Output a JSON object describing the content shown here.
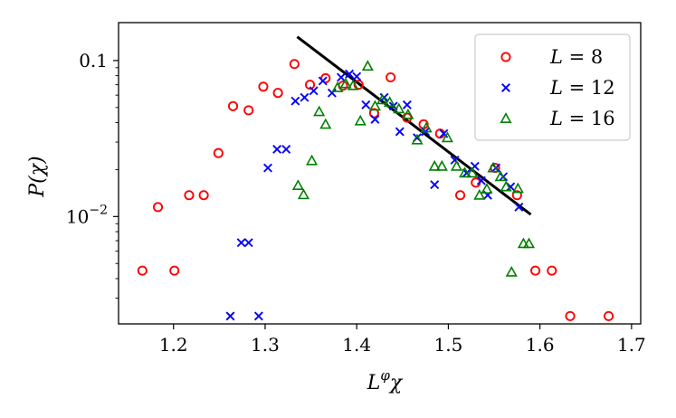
{
  "chart_data": {
    "type": "scatter",
    "xlabel": "L^φ χ",
    "ylabel": "P(χ)",
    "xlim": [
      1.14,
      1.71
    ],
    "ylim": [
      0.00205,
      0.175
    ],
    "yscale": "log",
    "xticks": [
      1.2,
      1.3,
      1.4,
      1.5,
      1.6,
      1.7
    ],
    "xtick_labels": [
      "1.2",
      "1.3",
      "1.4",
      "1.5",
      "1.6",
      "1.7"
    ],
    "yticks": [
      0.1,
      0.01
    ],
    "ytick_labels": [
      "0.1",
      "10^{-2}"
    ],
    "legend_position": "top-right",
    "grid": false,
    "series": [
      {
        "name": "L = 8",
        "marker": "circle",
        "color": "#ff0000",
        "x": [
          1.166,
          1.183,
          1.201,
          1.217,
          1.233,
          1.249,
          1.265,
          1.282,
          1.298,
          1.314,
          1.332,
          1.349,
          1.366,
          1.385,
          1.402,
          1.419,
          1.437,
          1.455,
          1.473,
          1.491,
          1.513,
          1.53,
          1.551,
          1.575,
          1.595,
          1.613,
          1.633,
          1.675
        ],
        "y": [
          0.0045,
          0.0115,
          0.0045,
          0.0137,
          0.0137,
          0.0255,
          0.051,
          0.048,
          0.068,
          0.062,
          0.095,
          0.07,
          0.077,
          0.069,
          0.07,
          0.046,
          0.078,
          0.043,
          0.039,
          0.034,
          0.0137,
          0.0165,
          0.0205,
          0.0137,
          0.0045,
          0.0045,
          0.0023,
          0.0023
        ]
      },
      {
        "name": "L = 12",
        "marker": "x",
        "color": "#0000ff",
        "x": [
          1.262,
          1.274,
          1.282,
          1.293,
          1.303,
          1.313,
          1.323,
          1.333,
          1.343,
          1.353,
          1.363,
          1.373,
          1.383,
          1.392,
          1.4,
          1.41,
          1.42,
          1.43,
          1.44,
          1.447,
          1.455,
          1.466,
          1.475,
          1.485,
          1.495,
          1.507,
          1.52,
          1.529,
          1.536,
          1.543,
          1.552,
          1.56,
          1.568,
          1.577
        ],
        "y": [
          0.0023,
          0.0068,
          0.0068,
          0.0023,
          0.0205,
          0.027,
          0.027,
          0.055,
          0.058,
          0.064,
          0.074,
          0.062,
          0.078,
          0.082,
          0.079,
          0.052,
          0.042,
          0.058,
          0.051,
          0.035,
          0.052,
          0.032,
          0.035,
          0.016,
          0.034,
          0.023,
          0.019,
          0.021,
          0.017,
          0.0137,
          0.0205,
          0.018,
          0.0155,
          0.0115
        ]
      },
      {
        "name": "L = 16",
        "marker": "triangle",
        "color": "#008000",
        "x": [
          1.336,
          1.342,
          1.351,
          1.359,
          1.366,
          1.379,
          1.388,
          1.396,
          1.404,
          1.412,
          1.42,
          1.428,
          1.436,
          1.446,
          1.456,
          1.466,
          1.476,
          1.485,
          1.493,
          1.499,
          1.509,
          1.518,
          1.526,
          1.534,
          1.542,
          1.549,
          1.557,
          1.563,
          1.569,
          1.576,
          1.582,
          1.588
        ],
        "y": [
          0.0158,
          0.0138,
          0.0228,
          0.047,
          0.039,
          0.067,
          0.071,
          0.069,
          0.041,
          0.092,
          0.051,
          0.056,
          0.054,
          0.049,
          0.045,
          0.031,
          0.037,
          0.021,
          0.021,
          0.032,
          0.021,
          0.019,
          0.019,
          0.0137,
          0.015,
          0.0205,
          0.018,
          0.0155,
          0.0044,
          0.0151,
          0.0067,
          0.0067
        ]
      }
    ],
    "fit_line": {
      "color": "#000000",
      "x": [
        1.335,
        1.59
      ],
      "y": [
        0.142,
        0.0103
      ]
    },
    "colors": {
      "axis": "#000000",
      "legend_border": "#cccccc",
      "background": "#ffffff"
    }
  }
}
